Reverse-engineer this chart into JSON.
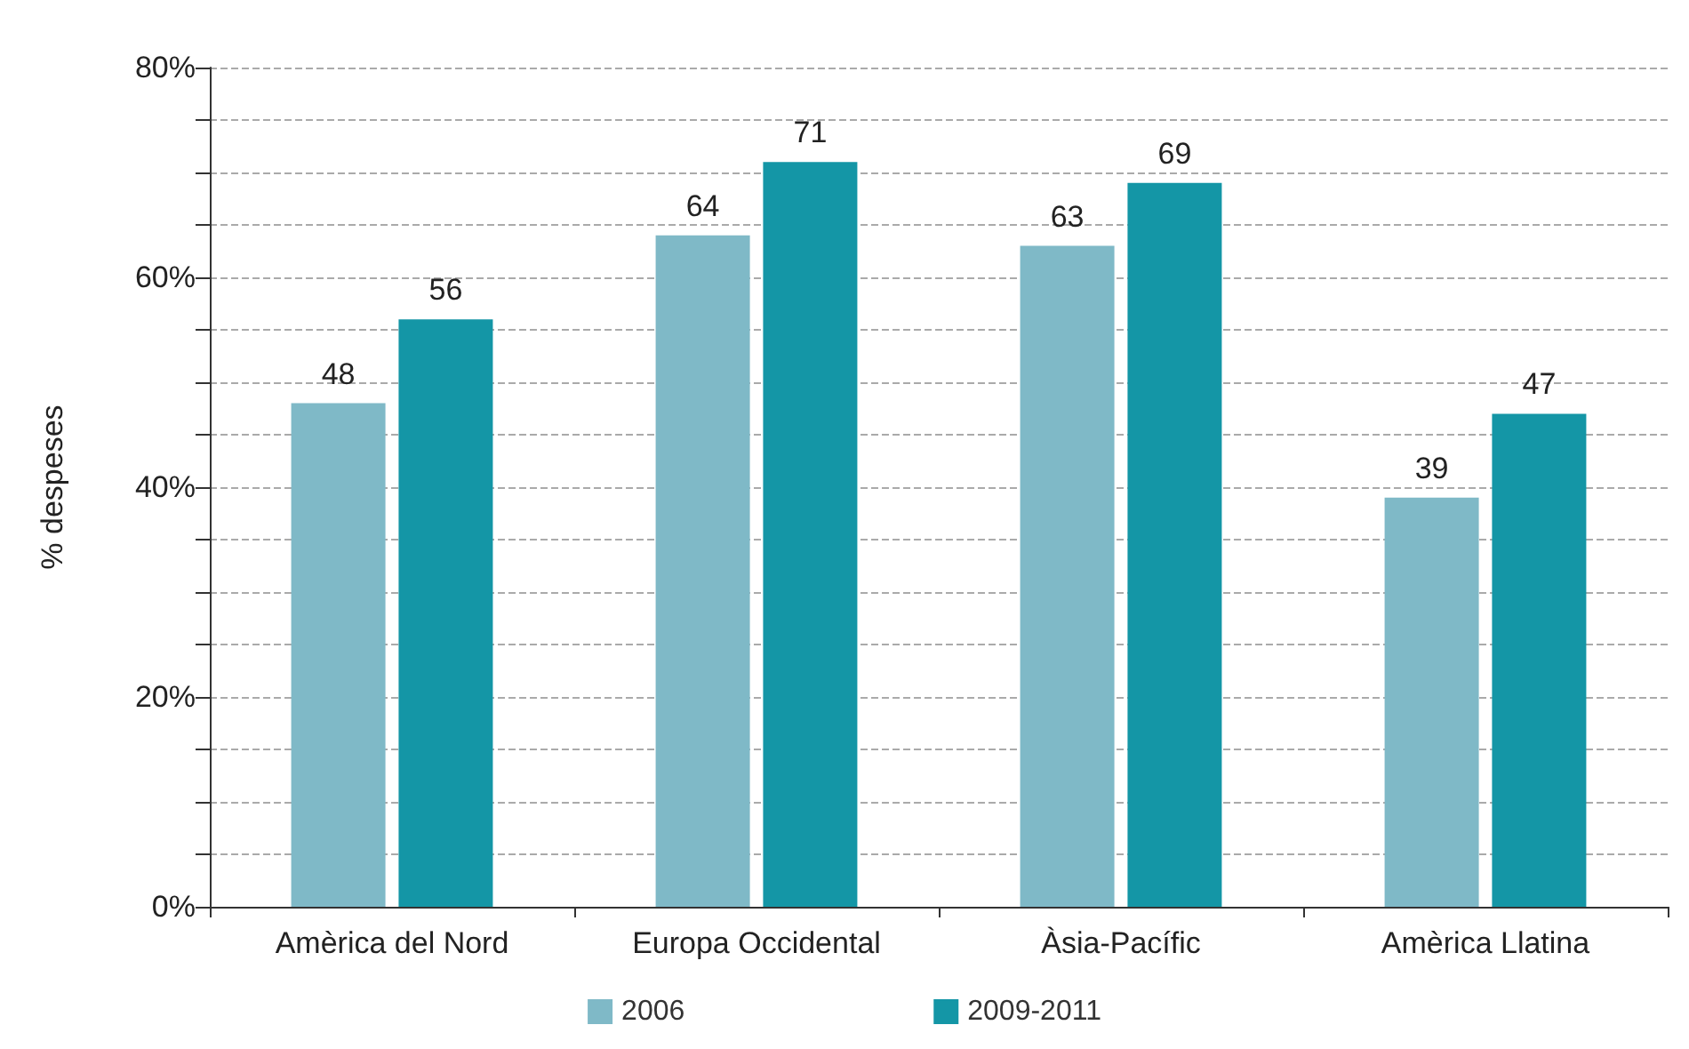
{
  "chart_data": {
    "type": "bar",
    "ylabel": "% despeses",
    "categories": [
      "Amèrica del Nord",
      "Europa Occidental",
      "Àsia-Pacífic",
      "Amèrica Llatina"
    ],
    "series": [
      {
        "name": "2006",
        "color": "#7fb9c7",
        "values": [
          48,
          64,
          63,
          39
        ]
      },
      {
        "name": "2009-2011",
        "color": "#1496a6",
        "values": [
          56,
          71,
          69,
          47
        ]
      }
    ],
    "ylim": [
      0,
      80
    ],
    "yticks": [
      {
        "value": 0,
        "label": "0%"
      },
      {
        "value": 5,
        "label": null
      },
      {
        "value": 10,
        "label": null
      },
      {
        "value": 15,
        "label": null
      },
      {
        "value": 20,
        "label": "20%"
      },
      {
        "value": 25,
        "label": null
      },
      {
        "value": 30,
        "label": null
      },
      {
        "value": 35,
        "label": null
      },
      {
        "value": 40,
        "label": "40%"
      },
      {
        "value": 45,
        "label": null
      },
      {
        "value": 50,
        "label": null
      },
      {
        "value": 55,
        "label": null
      },
      {
        "value": 60,
        "label": "60%"
      },
      {
        "value": 65,
        "label": null
      },
      {
        "value": 70,
        "label": null
      },
      {
        "value": 75,
        "label": null
      },
      {
        "value": 80,
        "label": "80%"
      }
    ],
    "grid": true,
    "data_labels": true,
    "legend": "bottom"
  }
}
